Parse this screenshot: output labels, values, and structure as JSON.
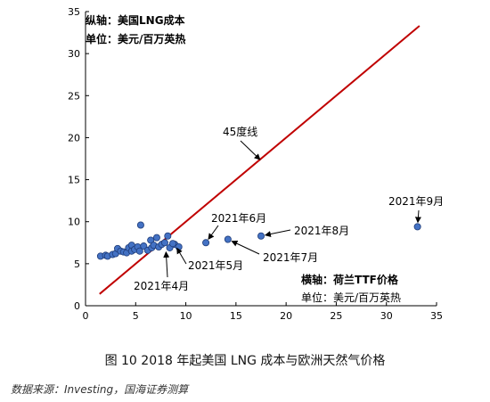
{
  "caption": "图 10 2018 年起美国 LNG 成本与欧洲天然气价格",
  "source": "数据来源：Investing，国海证券测算",
  "chart_data": {
    "type": "scatter",
    "xlim": [
      0,
      35
    ],
    "ylim": [
      0,
      35
    ],
    "x_ticks": [
      0,
      5,
      10,
      15,
      20,
      25,
      30,
      35
    ],
    "y_ticks": [
      0,
      5,
      10,
      15,
      20,
      25,
      30,
      35
    ],
    "grid": false,
    "y_axis_note": [
      "纵轴：美国LNG成本",
      "单位：美元/百万英热"
    ],
    "x_axis_note": [
      "横轴：荷兰TTF价格",
      "单位：美元/百万英热"
    ],
    "line": {
      "label": "45度线",
      "color": "#c00000",
      "points": [
        [
          1.4,
          1.4
        ],
        [
          33.3,
          33.3
        ]
      ]
    },
    "points": [
      {
        "x": 1.5,
        "y": 5.9
      },
      {
        "x": 2.0,
        "y": 6.0
      },
      {
        "x": 2.2,
        "y": 5.9
      },
      {
        "x": 2.7,
        "y": 6.1
      },
      {
        "x": 3.0,
        "y": 6.2
      },
      {
        "x": 3.2,
        "y": 6.8
      },
      {
        "x": 3.5,
        "y": 6.5
      },
      {
        "x": 3.8,
        "y": 6.4
      },
      {
        "x": 4.1,
        "y": 6.3
      },
      {
        "x": 4.3,
        "y": 6.9
      },
      {
        "x": 4.6,
        "y": 7.2
      },
      {
        "x": 4.6,
        "y": 6.5
      },
      {
        "x": 4.9,
        "y": 6.7
      },
      {
        "x": 5.2,
        "y": 7.0
      },
      {
        "x": 5.4,
        "y": 6.5
      },
      {
        "x": 5.5,
        "y": 9.6
      },
      {
        "x": 5.8,
        "y": 7.1
      },
      {
        "x": 6.2,
        "y": 6.6
      },
      {
        "x": 6.5,
        "y": 7.8
      },
      {
        "x": 6.6,
        "y": 6.9
      },
      {
        "x": 6.8,
        "y": 7.2
      },
      {
        "x": 7.1,
        "y": 8.1
      },
      {
        "x": 7.3,
        "y": 7.0
      },
      {
        "x": 7.6,
        "y": 7.3
      },
      {
        "x": 7.9,
        "y": 7.5
      },
      {
        "x": 8.2,
        "y": 8.3
      },
      {
        "x": 8.4,
        "y": 6.9
      },
      {
        "x": 8.9,
        "y": 7.3
      },
      {
        "x": 9.3,
        "y": 7.0
      },
      {
        "x": 8.7,
        "y": 7.4
      },
      {
        "x": 12.0,
        "y": 7.5
      },
      {
        "x": 14.2,
        "y": 7.9
      },
      {
        "x": 17.5,
        "y": 8.3
      },
      {
        "x": 33.1,
        "y": 9.4
      }
    ],
    "annotations": [
      {
        "text": "2021年4月",
        "x": 8.0,
        "y": 6.9
      },
      {
        "text": "2021年5月",
        "x": 8.9,
        "y": 7.3
      },
      {
        "text": "2021年6月",
        "x": 12.0,
        "y": 7.5
      },
      {
        "text": "2021年7月",
        "x": 14.2,
        "y": 7.9
      },
      {
        "text": "2021年8月",
        "x": 17.5,
        "y": 8.3
      },
      {
        "text": "2021年9月",
        "x": 33.1,
        "y": 9.4
      }
    ]
  }
}
